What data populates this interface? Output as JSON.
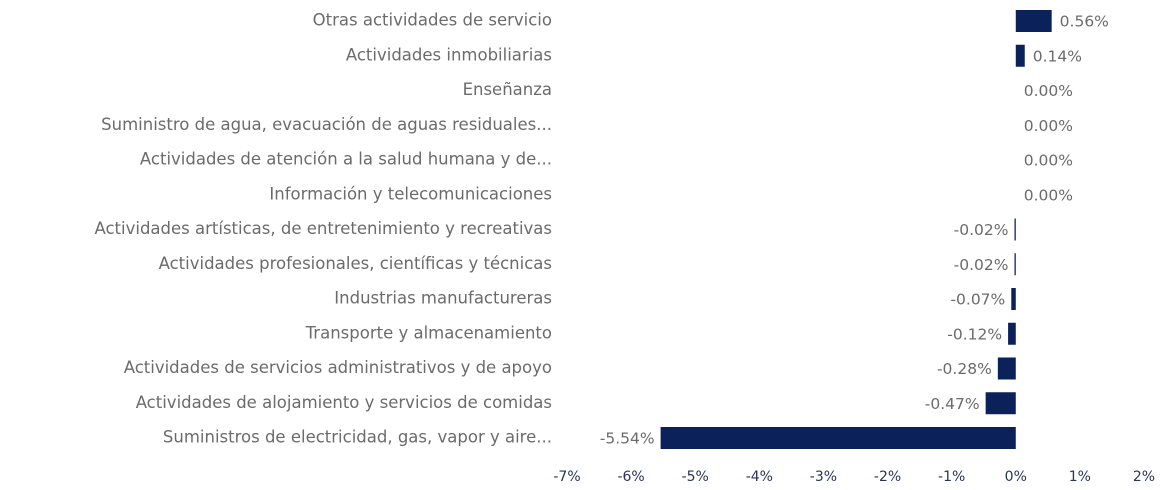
{
  "chart_data": {
    "type": "bar",
    "orientation": "horizontal",
    "color": "#0b2159",
    "categories": [
      "Otras actividades de servicio",
      "Actividades inmobiliarias",
      "Enseñanza",
      "Suministro de agua, evacuación de aguas residuales...",
      "Actividades de atención a la salud humana y de...",
      "Información y telecomunicaciones",
      "Actividades artísticas, de entretenimiento y recreativas",
      "Actividades profesionales, científicas y técnicas",
      "Industrias manufactureras",
      "Transporte y almacenamiento",
      "Actividades de servicios administrativos y de apoyo",
      "Actividades de alojamiento y servicios de comidas",
      "Suministros de electricidad, gas, vapor y aire..."
    ],
    "values": [
      0.56,
      0.14,
      0.0,
      0.0,
      0.0,
      0.0,
      -0.02,
      -0.02,
      -0.07,
      -0.12,
      -0.28,
      -0.47,
      -5.54
    ],
    "value_labels": [
      "0.56%",
      "0.14%",
      "0.00%",
      "0.00%",
      "0.00%",
      "0.00%",
      "-0.02%",
      "-0.02%",
      "-0.07%",
      "-0.12%",
      "-0.28%",
      "-0.47%",
      "-5.54%"
    ],
    "xlim": [
      -7,
      2
    ],
    "xticks": [
      {
        "value": -7,
        "label": "-7%"
      },
      {
        "value": -6,
        "label": "-6%"
      },
      {
        "value": -5,
        "label": "-5%"
      },
      {
        "value": -4,
        "label": "-4%"
      },
      {
        "value": -3,
        "label": "-3%"
      },
      {
        "value": -2,
        "label": "-2%"
      },
      {
        "value": -1,
        "label": "-1%"
      },
      {
        "value": 0,
        "label": "0%"
      },
      {
        "value": 1,
        "label": "1%"
      },
      {
        "value": 2,
        "label": "2%"
      }
    ]
  }
}
